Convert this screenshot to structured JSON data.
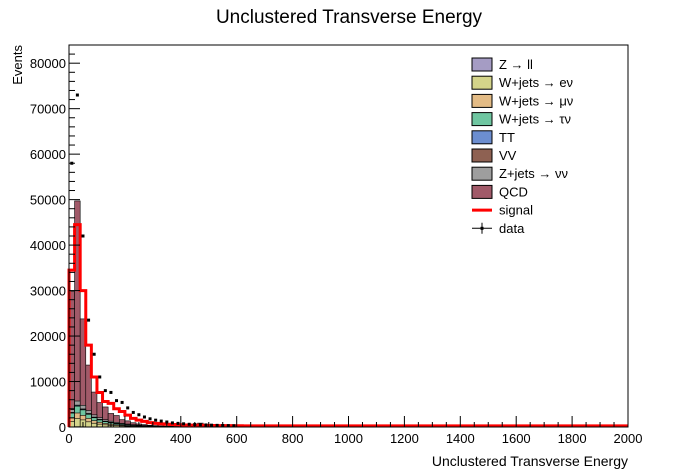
{
  "chart_data": {
    "type": "stacked-histogram",
    "title": "Unclustered Transverse Energy",
    "xlabel": "Unclustered Transverse Energy",
    "ylabel": "Events",
    "xlim": [
      0,
      2000
    ],
    "ylim": [
      0,
      84000
    ],
    "xticks": [
      0,
      200,
      400,
      600,
      800,
      1000,
      1200,
      1400,
      1600,
      1800,
      2000
    ],
    "xtick_labels": [
      "0",
      "200",
      "400",
      "600",
      "800",
      "1000",
      "1200",
      "1400",
      "1600",
      "1800",
      "2000"
    ],
    "yticks": [
      0,
      10000,
      20000,
      30000,
      40000,
      50000,
      60000,
      70000,
      80000
    ],
    "ytick_labels": [
      "0",
      "10000",
      "20000",
      "30000",
      "40000",
      "50000",
      "60000",
      "70000",
      "80000"
    ],
    "legend_position": "top-right",
    "bin_width": 20,
    "bin_starts": [
      0,
      20,
      40,
      60,
      80,
      100,
      120,
      140,
      160,
      180,
      200,
      220,
      240,
      260,
      280,
      300,
      320,
      340,
      360,
      380,
      400,
      420,
      440,
      460,
      480,
      500,
      520,
      540,
      560,
      580,
      600
    ],
    "stack": [
      {
        "name": "Z → ll",
        "color": "#a59cc4",
        "values": [
          50,
          80,
          60,
          40,
          30,
          25,
          20,
          15,
          12,
          10,
          8,
          7,
          6,
          5,
          4,
          4,
          3,
          3,
          2,
          2,
          2,
          2,
          2,
          2,
          1,
          1,
          1,
          1,
          1,
          1,
          1
        ]
      },
      {
        "name": "W+jets → eν",
        "color": "#d4d48a",
        "values": [
          1200,
          1800,
          1500,
          1100,
          800,
          600,
          450,
          350,
          280,
          220,
          170,
          130,
          100,
          80,
          60,
          50,
          40,
          35,
          30,
          25,
          20,
          18,
          16,
          14,
          12,
          10,
          9,
          8,
          7,
          6,
          5
        ]
      },
      {
        "name": "W+jets → μν",
        "color": "#e3bb85",
        "values": [
          800,
          1200,
          1000,
          750,
          550,
          420,
          320,
          250,
          200,
          160,
          120,
          95,
          75,
          60,
          45,
          38,
          30,
          25,
          20,
          18,
          15,
          13,
          11,
          10,
          9,
          8,
          7,
          6,
          5,
          5,
          4
        ]
      },
      {
        "name": "W+jets → τν",
        "color": "#6fc6a1",
        "values": [
          1000,
          1500,
          1200,
          900,
          650,
          500,
          380,
          300,
          240,
          190,
          150,
          115,
          90,
          70,
          55,
          45,
          36,
          30,
          25,
          20,
          17,
          15,
          13,
          12,
          10,
          9,
          8,
          7,
          6,
          5,
          5
        ]
      },
      {
        "name": "TT",
        "color": "#6c8ed0",
        "values": [
          100,
          150,
          140,
          120,
          100,
          90,
          80,
          70,
          60,
          50,
          45,
          40,
          35,
          30,
          25,
          20,
          18,
          15,
          12,
          10,
          8,
          7,
          6,
          5,
          4,
          4,
          3,
          3,
          2,
          2,
          2
        ]
      },
      {
        "name": "VV",
        "color": "#8e6152",
        "values": [
          50,
          80,
          70,
          60,
          50,
          40,
          35,
          30,
          25,
          20,
          18,
          15,
          12,
          10,
          8,
          7,
          6,
          5,
          4,
          4,
          3,
          3,
          2,
          2,
          2,
          2,
          1,
          1,
          1,
          1,
          1
        ]
      },
      {
        "name": "Z+jets → νν",
        "color": "#9e9e9e",
        "values": [
          600,
          900,
          800,
          650,
          500,
          400,
          320,
          260,
          210,
          170,
          135,
          105,
          85,
          70,
          55,
          45,
          38,
          32,
          26,
          22,
          18,
          16,
          14,
          12,
          10,
          9,
          8,
          7,
          6,
          5,
          5
        ]
      },
      {
        "name": "QCD",
        "color": "#a15a69",
        "values": [
          26000,
          44000,
          19000,
          10000,
          5000,
          3300,
          2800,
          1700,
          1500,
          800,
          700,
          430,
          260,
          200,
          120,
          100,
          60,
          45,
          40,
          30,
          60,
          40,
          300,
          800,
          40,
          20,
          20,
          15,
          15,
          12,
          10
        ]
      }
    ],
    "signal": {
      "name": "signal",
      "color": "#ff0000",
      "values": [
        34500,
        44500,
        30000,
        18000,
        11000,
        7600,
        5600,
        5200,
        4000,
        3400,
        2600,
        1900,
        1500,
        1250,
        950,
        800,
        700,
        600,
        550,
        500,
        450,
        420,
        400,
        380,
        350,
        330,
        310,
        300,
        290,
        280,
        270
      ],
      "tail_level": 250,
      "tail_end": 2000
    },
    "data": {
      "name": "data",
      "x": [
        10,
        30,
        50,
        70,
        90,
        110,
        130,
        150,
        170,
        190,
        210,
        230,
        250,
        270,
        290,
        310,
        330,
        350,
        370,
        390,
        410,
        430,
        450,
        470,
        490,
        510,
        530,
        550,
        570,
        590
      ],
      "y": [
        58000,
        73000,
        42000,
        23500,
        16000,
        11000,
        8000,
        7600,
        5800,
        5400,
        4200,
        3200,
        2700,
        2200,
        1800,
        1500,
        1300,
        1100,
        900,
        800,
        700,
        600,
        560,
        500,
        450,
        400,
        360,
        330,
        300,
        280
      ]
    }
  }
}
